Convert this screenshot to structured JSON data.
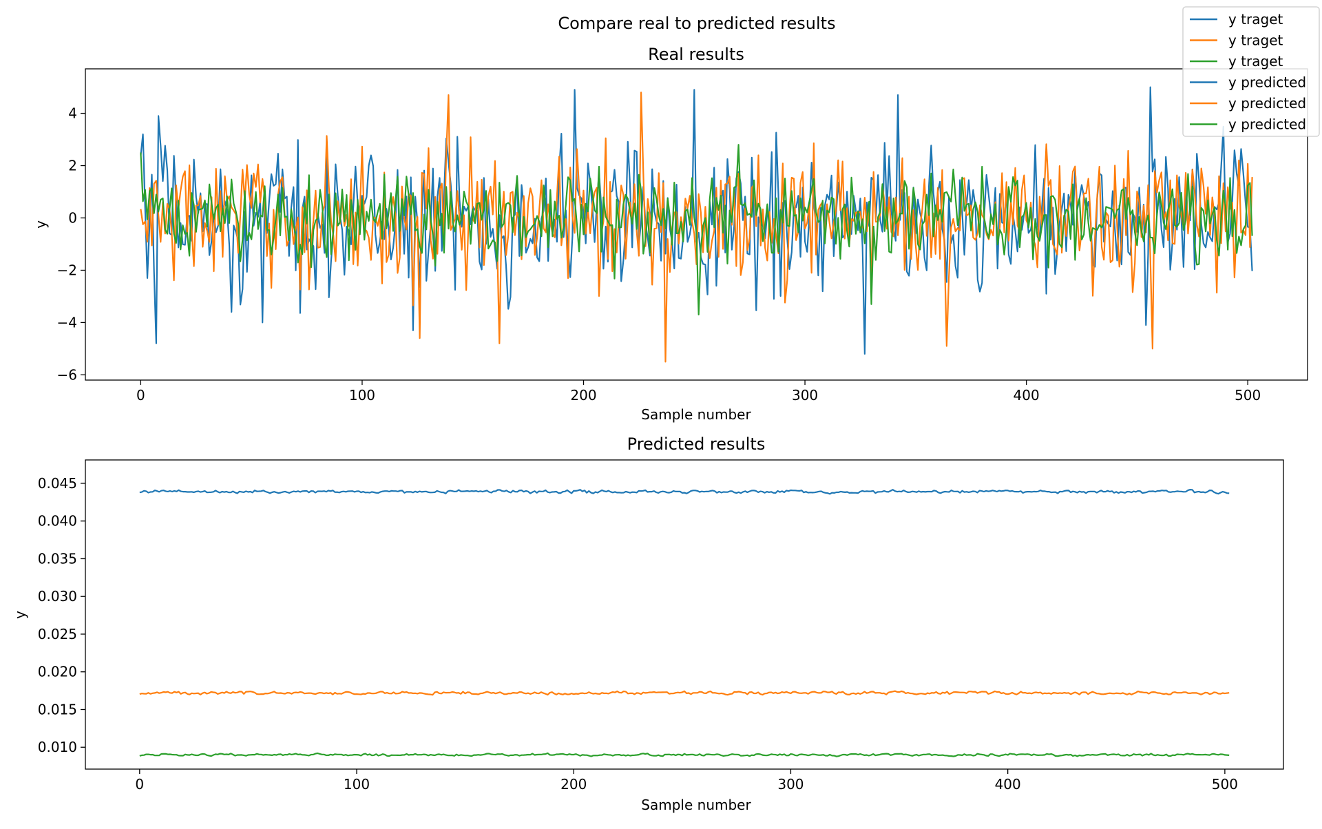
{
  "figure": {
    "suptitle": "Compare real to predicted results"
  },
  "legend": {
    "location": "upper right",
    "entries": [
      {
        "label": "y traget",
        "color": "#1f77b4"
      },
      {
        "label": "y traget",
        "color": "#ff7f0e"
      },
      {
        "label": "y traget",
        "color": "#2ca02c"
      },
      {
        "label": "y predicted",
        "color": "#1f77b4"
      },
      {
        "label": "y predicted",
        "color": "#ff7f0e"
      },
      {
        "label": "y predicted",
        "color": "#2ca02c"
      }
    ]
  },
  "chart_data": [
    {
      "type": "line",
      "title": "Real results",
      "xlabel": "Sample number",
      "ylabel": "y",
      "xlim": [
        -25,
        527
      ],
      "ylim": [
        -6.2,
        5.7
      ],
      "xticks": [
        0,
        100,
        200,
        300,
        400,
        500
      ],
      "xtick_labels": [
        "0",
        "100",
        "200",
        "300",
        "400",
        "500"
      ],
      "yticks": [
        -6,
        -4,
        -2,
        0,
        2,
        4
      ],
      "ytick_labels": [
        "−6",
        "−4",
        "−2",
        "0",
        "2",
        "4"
      ],
      "grid": false,
      "x": {
        "start": 0,
        "end": 502,
        "step": 1
      },
      "series_generation": "procedural noise, approximate",
      "series": [
        {
          "color": "#1f77b4",
          "center": 0,
          "amplitude": 2.0,
          "spikes": [
            [
              1,
              3.2
            ],
            [
              3,
              -2.3
            ],
            [
              8,
              3.9
            ],
            [
              7,
              -4.8
            ],
            [
              41,
              -3.6
            ],
            [
              55,
              -4.0
            ],
            [
              123,
              -4.3
            ],
            [
              196,
              4.9
            ],
            [
              250,
              4.9
            ],
            [
              327,
              -5.2
            ],
            [
              342,
              4.7
            ],
            [
              456,
              5.0
            ],
            [
              454,
              -4.1
            ]
          ]
        },
        {
          "color": "#ff7f0e",
          "center": 0,
          "amplitude": 1.8,
          "spikes": [
            [
              139,
              4.7
            ],
            [
              162,
              -4.8
            ],
            [
              226,
              4.8
            ],
            [
              237,
              -5.5
            ],
            [
              364,
              -4.9
            ],
            [
              457,
              -5.0
            ],
            [
              126,
              -4.6
            ]
          ]
        },
        {
          "color": "#2ca02c",
          "center": 0,
          "amplitude": 1.2,
          "spikes": [
            [
              0,
              2.5
            ],
            [
              270,
              2.8
            ],
            [
              330,
              -3.3
            ],
            [
              252,
              -3.7
            ]
          ]
        }
      ]
    },
    {
      "type": "line",
      "title": "Predicted results",
      "xlabel": "Sample number",
      "ylabel": "y",
      "xlim": [
        -25,
        527
      ],
      "ylim": [
        0.0071,
        0.0481
      ],
      "xticks": [
        0,
        100,
        200,
        300,
        400,
        500
      ],
      "xtick_labels": [
        "0",
        "100",
        "200",
        "300",
        "400",
        "500"
      ],
      "yticks": [
        0.01,
        0.015,
        0.02,
        0.025,
        0.03,
        0.035,
        0.04,
        0.045
      ],
      "ytick_labels": [
        "0.010",
        "0.015",
        "0.020",
        "0.025",
        "0.030",
        "0.035",
        "0.040",
        "0.045"
      ],
      "grid": false,
      "x": {
        "start": 0,
        "end": 502,
        "step": 1
      },
      "series_generation": "procedural noise, approximate",
      "series": [
        {
          "color": "#1f77b4",
          "center": 0.0439,
          "amplitude": 0.0004
        },
        {
          "color": "#ff7f0e",
          "center": 0.0172,
          "amplitude": 0.0004
        },
        {
          "color": "#2ca02c",
          "center": 0.009,
          "amplitude": 0.0003
        }
      ]
    }
  ]
}
